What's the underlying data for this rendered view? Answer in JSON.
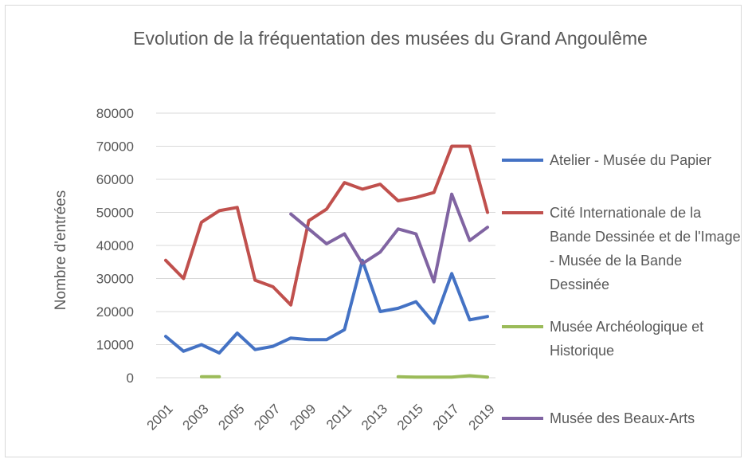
{
  "chart_data": {
    "type": "line",
    "title": "Evolution de la fréquentation des musées du Grand Angoulême",
    "ylabel": "Nombre d'entrées",
    "categories": [
      "2001",
      null,
      "2003",
      null,
      "2005",
      null,
      "2007",
      null,
      "2009",
      null,
      "2011",
      null,
      "2013",
      null,
      "2015",
      null,
      "2017",
      null,
      "2019"
    ],
    "series": [
      {
        "name": "Atelier - Musée du Papier",
        "color": "#4472c4",
        "values": [
          12500,
          8000,
          10000,
          7500,
          13500,
          8500,
          9500,
          12000,
          11500,
          11500,
          14500,
          35500,
          20000,
          21000,
          23000,
          16500,
          31500,
          17500,
          18500
        ]
      },
      {
        "name": "Cité Internationale de la Bande Dessinée et de l'Image - Musée de la Bande Dessinée",
        "color": "#c0504d",
        "values": [
          35500,
          30000,
          47000,
          50500,
          51500,
          29500,
          27500,
          22000,
          47500,
          51000,
          59000,
          57000,
          58500,
          53500,
          54500,
          56000,
          70000,
          70000,
          50000
        ]
      },
      {
        "name": "Musée Archéologique et Historique",
        "color": "#9bbb59",
        "values": [
          null,
          null,
          300,
          300,
          null,
          null,
          null,
          null,
          null,
          null,
          null,
          null,
          null,
          300,
          200,
          200,
          200,
          600,
          200
        ]
      },
      {
        "name": "Musée des Beaux-Arts",
        "color": "#8064a2",
        "values": [
          null,
          null,
          null,
          null,
          null,
          null,
          null,
          49500,
          45000,
          40500,
          43500,
          34500,
          38000,
          45000,
          43500,
          29000,
          55500,
          41500,
          45500
        ]
      }
    ],
    "ylim": [
      0,
      80000
    ],
    "yticks": [
      0,
      10000,
      20000,
      30000,
      40000,
      50000,
      60000,
      70000,
      80000
    ],
    "grid": true,
    "legend": "right"
  }
}
